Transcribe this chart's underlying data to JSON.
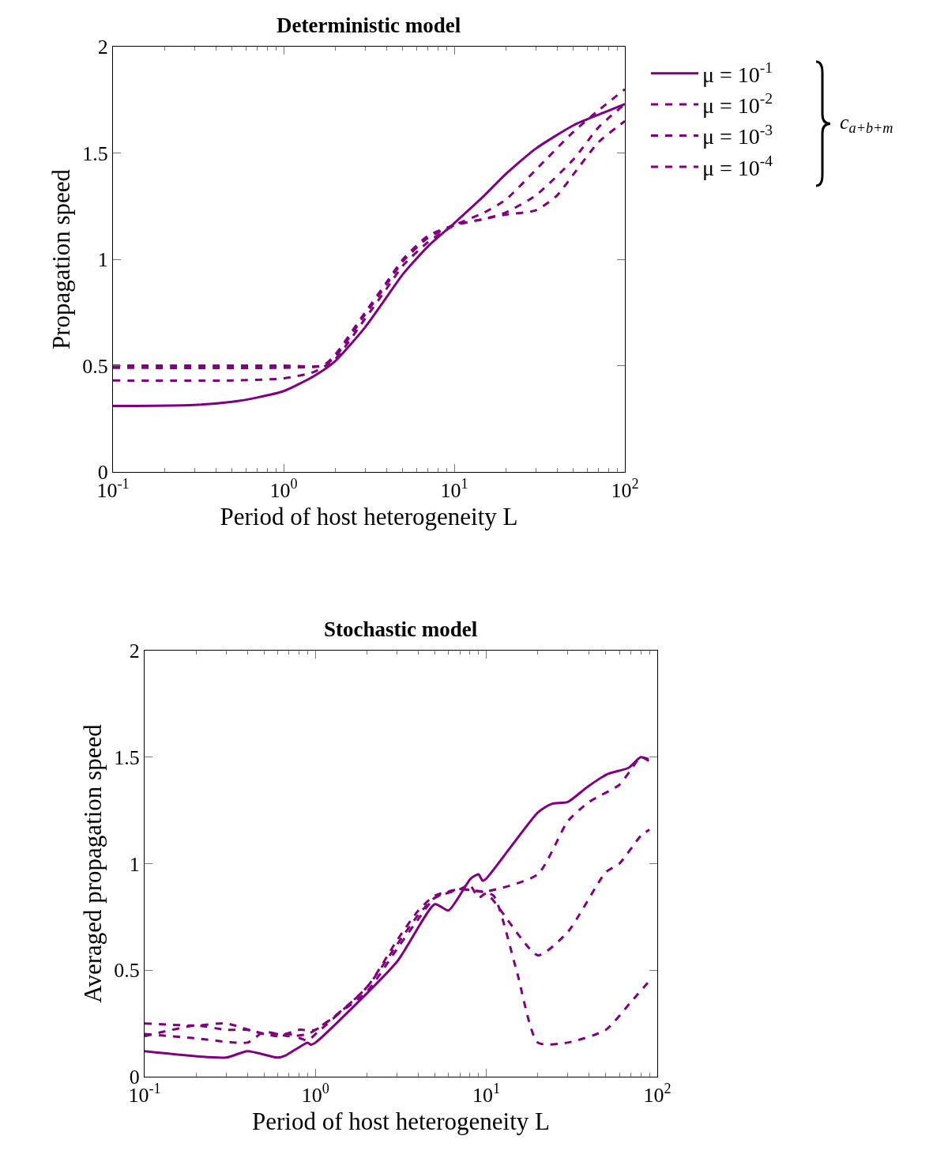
{
  "chart_data": [
    {
      "type": "line",
      "title": "Deterministic model",
      "xlabel": "Period of host heterogeneity L",
      "ylabel": "Propagation speed",
      "log": "x",
      "xlim": [
        0.1,
        100
      ],
      "xticks": [
        {
          "value": 0.1,
          "label": "10$^{-1}$"
        },
        {
          "value": 1,
          "label": "10$^{0}$"
        },
        {
          "value": 10,
          "label": "10$^{1}$"
        },
        {
          "value": 100,
          "label": "10$^{2}$"
        }
      ],
      "ylim": [
        0,
        2
      ],
      "yticks": [
        0,
        0.5,
        1,
        1.5,
        2
      ],
      "legend": "top right",
      "annotations": [
        "c$_{a+b+m}$"
      ],
      "series": [
        {
          "name": "μ = 10$^{-1}$",
          "color": "#800080",
          "line_style": "solid",
          "x": [
            0.1,
            0.3,
            0.5,
            0.7,
            1,
            1.5,
            2,
            3,
            4,
            5,
            7,
            10,
            15,
            20,
            30,
            50,
            70,
            100
          ],
          "values": [
            0.31,
            0.315,
            0.33,
            0.35,
            0.38,
            0.45,
            0.52,
            0.68,
            0.82,
            0.93,
            1.06,
            1.17,
            1.3,
            1.4,
            1.52,
            1.63,
            1.68,
            1.73
          ]
        },
        {
          "name": "μ = 10$^{-2}$",
          "color": "#800080",
          "line_style": "dashed",
          "x": [
            0.1,
            0.5,
            1,
            1.5,
            2,
            3,
            4,
            5,
            7,
            10,
            15,
            20,
            30,
            50,
            70,
            100
          ],
          "values": [
            0.43,
            0.43,
            0.44,
            0.47,
            0.53,
            0.72,
            0.86,
            0.97,
            1.08,
            1.16,
            1.22,
            1.28,
            1.42,
            1.6,
            1.7,
            1.8
          ]
        },
        {
          "name": "μ = 10$^{-3}$",
          "color": "#800080",
          "line_style": "dashed",
          "x": [
            0.1,
            1,
            1.7,
            2,
            3,
            4,
            5,
            7,
            10,
            15,
            20,
            30,
            50,
            70,
            100
          ],
          "values": [
            0.49,
            0.49,
            0.5,
            0.54,
            0.74,
            0.88,
            0.99,
            1.1,
            1.16,
            1.19,
            1.22,
            1.3,
            1.47,
            1.62,
            1.73
          ]
        },
        {
          "name": "μ = 10$^{-4}$",
          "color": "#800080",
          "line_style": "dashed",
          "x": [
            0.1,
            1,
            1.7,
            2,
            3,
            4,
            5,
            7,
            10,
            15,
            20,
            30,
            40,
            50,
            70,
            100
          ],
          "values": [
            0.5,
            0.5,
            0.5,
            0.55,
            0.75,
            0.89,
            1.0,
            1.11,
            1.16,
            1.19,
            1.21,
            1.23,
            1.3,
            1.4,
            1.55,
            1.65
          ]
        }
      ]
    },
    {
      "type": "line",
      "title": "Stochastic model",
      "xlabel": "Period of host heterogeneity L",
      "ylabel": "Averaged propagation speed",
      "log": "x",
      "xlim": [
        0.1,
        100
      ],
      "xticks": [
        {
          "value": 0.1,
          "label": "10$^{-1}$"
        },
        {
          "value": 1,
          "label": "10$^{0}$"
        },
        {
          "value": 10,
          "label": "10$^{1}$"
        },
        {
          "value": 100,
          "label": "10$^{2}$"
        }
      ],
      "ylim": [
        0,
        2
      ],
      "yticks": [
        0,
        0.5,
        1,
        1.5,
        2
      ],
      "legend": false,
      "series": [
        {
          "color": "#800080",
          "line_style": "solid",
          "x": [
            0.1,
            0.3,
            0.4,
            0.6,
            0.67,
            0.9,
            0.94,
            1,
            3,
            5,
            6,
            8.1,
            9,
            9.5,
            10,
            20,
            24,
            30,
            39,
            51,
            68,
            80,
            89
          ],
          "values": [
            0.12,
            0.09,
            0.12,
            0.09,
            0.1,
            0.16,
            0.15,
            0.16,
            0.54,
            0.81,
            0.78,
            0.93,
            0.95,
            0.92,
            0.93,
            1.24,
            1.28,
            1.29,
            1.36,
            1.42,
            1.45,
            1.5,
            1.49
          ]
        },
        {
          "color": "#800080",
          "line_style": "dashed",
          "x": [
            0.1,
            0.2,
            0.4,
            0.5,
            0.7,
            0.9,
            1,
            2,
            3,
            4,
            5,
            7,
            10,
            20,
            30,
            40,
            60,
            70,
            80,
            90
          ],
          "values": [
            0.2,
            0.18,
            0.16,
            0.21,
            0.19,
            0.2,
            0.22,
            0.4,
            0.6,
            0.74,
            0.84,
            0.88,
            0.87,
            0.95,
            1.2,
            1.29,
            1.37,
            1.44,
            1.5,
            1.48
          ]
        },
        {
          "color": "#800080",
          "line_style": "dashed",
          "x": [
            0.1,
            0.2,
            0.3,
            0.5,
            0.7,
            0.9,
            1,
            2,
            3,
            4,
            5,
            7,
            8,
            9,
            10,
            20,
            30,
            50,
            60,
            80,
            90
          ],
          "values": [
            0.25,
            0.24,
            0.25,
            0.2,
            0.2,
            0.17,
            0.2,
            0.42,
            0.62,
            0.76,
            0.84,
            0.88,
            0.9,
            0.84,
            0.86,
            0.57,
            0.68,
            0.96,
            1.0,
            1.13,
            1.16
          ]
        },
        {
          "color": "#800080",
          "line_style": "dashed",
          "x": [
            0.1,
            0.2,
            0.3,
            0.4,
            0.6,
            0.8,
            1,
            2,
            3,
            4,
            5,
            7,
            9,
            11,
            15,
            20,
            30,
            50,
            70,
            90
          ],
          "values": [
            0.19,
            0.24,
            0.22,
            0.22,
            0.19,
            0.22,
            0.22,
            0.42,
            0.64,
            0.78,
            0.85,
            0.88,
            0.87,
            0.85,
            0.5,
            0.16,
            0.16,
            0.22,
            0.35,
            0.45
          ]
        }
      ]
    }
  ]
}
